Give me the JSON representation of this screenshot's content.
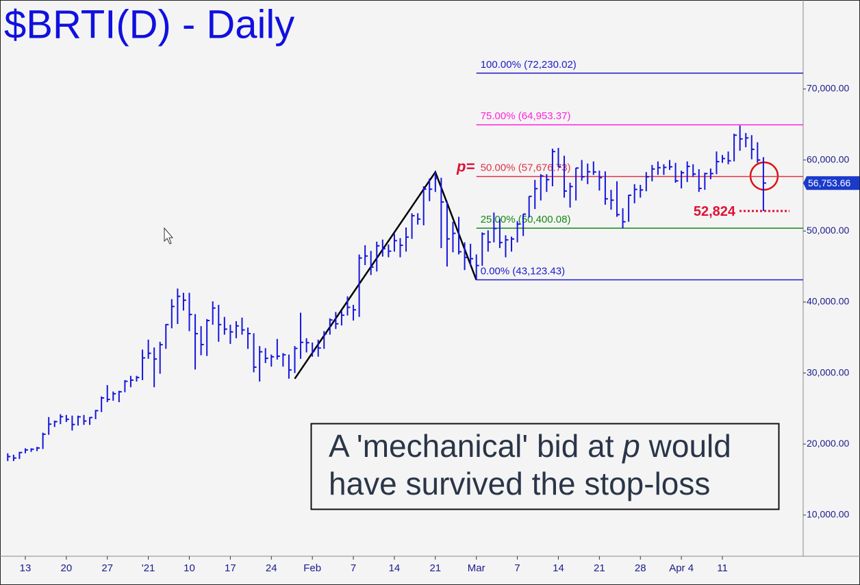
{
  "chart_data": {
    "type": "ohlc",
    "title": "$BRTI(D) - Daily",
    "color": "#1515dd",
    "categories": [
      null,
      null,
      null,
      "13",
      null,
      null,
      null,
      null,
      null,
      null,
      "20",
      null,
      null,
      null,
      null,
      null,
      null,
      "27",
      null,
      null,
      null,
      null,
      null,
      null,
      "'21",
      null,
      null,
      null,
      null,
      null,
      null,
      "10",
      null,
      null,
      null,
      null,
      null,
      null,
      "17",
      null,
      null,
      null,
      null,
      null,
      null,
      "24",
      null,
      null,
      null,
      null,
      null,
      null,
      "Feb",
      null,
      null,
      null,
      null,
      null,
      null,
      "7",
      null,
      null,
      null,
      null,
      null,
      null,
      "14",
      null,
      null,
      null,
      null,
      null,
      null,
      "21",
      null,
      null,
      null,
      null,
      null,
      null,
      "Mar",
      null,
      null,
      null,
      null,
      null,
      null,
      "7",
      null,
      null,
      null,
      null,
      null,
      null,
      "14",
      null,
      null,
      null,
      null,
      null,
      null,
      "21",
      null,
      null,
      null,
      null,
      null,
      null,
      "28",
      null,
      null,
      null,
      null,
      null,
      null,
      "Apr 4",
      null,
      null,
      null,
      null,
      null,
      null,
      "11",
      null,
      null,
      null,
      null,
      null,
      null,
      null
    ],
    "high": [
      18700,
      18500,
      18900,
      19400,
      19400,
      19600,
      21600,
      23800,
      23300,
      24200,
      24100,
      24000,
      24000,
      24100,
      23800,
      24800,
      26700,
      28300,
      27400,
      27500,
      29000,
      29600,
      29600,
      33300,
      34700,
      33600,
      34400,
      36900,
      40400,
      41900,
      41300,
      41300,
      38300,
      36600,
      37600,
      40100,
      39600,
      37900,
      36800,
      37300,
      37800,
      36400,
      35600,
      33800,
      33500,
      32600,
      34800,
      32800,
      32600,
      33800,
      38500,
      34900,
      34300,
      34700,
      35900,
      37700,
      38600,
      38700,
      40800,
      39600,
      46700,
      48000,
      47200,
      48500,
      48800,
      48100,
      49600,
      49000,
      50500,
      52500,
      52500,
      56300,
      57400,
      58300,
      57500,
      54200,
      51300,
      52000,
      48400,
      48200,
      46700,
      49800,
      50100,
      52600,
      51700,
      49400,
      49200,
      51400,
      52400,
      54900,
      57200,
      58000,
      58000,
      61600,
      61700,
      60600,
      56800,
      58900,
      60000,
      59500,
      59800,
      58500,
      58400,
      55800,
      57000,
      53200,
      55100,
      56600,
      56500,
      58300,
      59300,
      59800,
      59400,
      60000,
      59600,
      58500,
      59800,
      59400,
      58700,
      58200,
      58800,
      61200,
      60700,
      61200,
      63700,
      64850,
      63800,
      63500,
      62500,
      60400
    ],
    "low": [
      17600,
      17600,
      17900,
      18700,
      18900,
      19000,
      19300,
      21300,
      22400,
      22800,
      23100,
      21900,
      22600,
      22700,
      22700,
      23500,
      24500,
      25900,
      26100,
      25900,
      27300,
      28000,
      28800,
      29000,
      32000,
      28000,
      29900,
      33400,
      36300,
      36900,
      38800,
      35900,
      30500,
      32500,
      32400,
      36800,
      34400,
      35400,
      34100,
      34900,
      35400,
      33400,
      30100,
      28800,
      31400,
      30900,
      31900,
      30900,
      29200,
      30000,
      32000,
      32900,
      32300,
      32300,
      33400,
      35400,
      36200,
      36700,
      38100,
      37400,
      37900,
      45200,
      43800,
      44300,
      46400,
      46300,
      47100,
      46300,
      47100,
      48900,
      50900,
      50800,
      54200,
      55500,
      47600,
      45000,
      47000,
      46700,
      44500,
      45100,
      43100,
      45100,
      47100,
      48400,
      47600,
      46300,
      47100,
      48400,
      49300,
      51900,
      53100,
      54300,
      55500,
      56300,
      59000,
      54700,
      53300,
      54300,
      57100,
      56600,
      57900,
      55700,
      53700,
      53000,
      52000,
      50400,
      51300,
      53900,
      54700,
      55600,
      57000,
      57900,
      57900,
      58600,
      56800,
      56000,
      56900,
      57600,
      55500,
      55800,
      57300,
      58000,
      59600,
      59400,
      59800,
      61300,
      61800,
      60100,
      59600,
      52824
    ],
    "close": [
      18240,
      18030,
      18800,
      19170,
      19270,
      19440,
      21380,
      22800,
      23150,
      23850,
      23480,
      22750,
      23830,
      23240,
      23730,
      24700,
      26490,
      26280,
      27080,
      27360,
      28840,
      29000,
      29370,
      32130,
      32780,
      31970,
      33990,
      36820,
      39370,
      40800,
      40250,
      38240,
      35540,
      34010,
      37390,
      39150,
      36820,
      36180,
      35790,
      36630,
      36070,
      35550,
      30830,
      32990,
      32070,
      32290,
      32370,
      32570,
      30430,
      33470,
      34320,
      34270,
      33110,
      33520,
      35510,
      37470,
      36930,
      38140,
      39260,
      38900,
      46200,
      46480,
      44920,
      47910,
      47500,
      47160,
      48640,
      47990,
      49140,
      52150,
      51680,
      55890,
      55890,
      57410,
      54090,
      48890,
      49670,
      47070,
      46280,
      46100,
      45140,
      49590,
      48440,
      50350,
      48370,
      48750,
      48880,
      50970,
      52380,
      54880,
      55960,
      57750,
      57230,
      61190,
      59020,
      55630,
      56260,
      58870,
      57630,
      58340,
      58310,
      57520,
      54530,
      54340,
      52300,
      51300,
      55040,
      55860,
      55780,
      57630,
      58730,
      58920,
      58960,
      59040,
      57060,
      58200,
      59100,
      58020,
      56000,
      58090,
      58090,
      59770,
      60200,
      59890,
      63500,
      62970,
      63110,
      61500,
      60000,
      56753.66
    ],
    "ylim": [
      4200,
      82050
    ],
    "yticks": [
      {
        "value": 10000,
        "label": "10,000.00"
      },
      {
        "value": 20000,
        "label": "20,000.00"
      },
      {
        "value": 30000,
        "label": "30,000.00"
      },
      {
        "value": 40000,
        "label": "40,000.00"
      },
      {
        "value": 50000,
        "label": "50,000.00"
      },
      {
        "value": 60000,
        "label": "60,000.00"
      },
      {
        "value": 70000,
        "label": "70,000.00"
      }
    ],
    "fib_levels": [
      {
        "label": "100.00% (72,230.02)",
        "value": 72230.02,
        "color": "#1a1acc"
      },
      {
        "label": "75.00% (64,953.37)",
        "value": 64953.37,
        "color": "#ff22dd"
      },
      {
        "label": "50.00% (57,676.73)",
        "value": 57676.73,
        "color": "#dd3344"
      },
      {
        "label": "25.00% (50,400.08)",
        "value": 50400.08,
        "color": "#118811"
      },
      {
        "label": "0.00% (43,123.43)",
        "value": 43123.43,
        "color": "#1a1acc"
      }
    ],
    "fib_start": 80,
    "p_label": "p=",
    "stop": {
      "value": 52824,
      "label": "52,824"
    },
    "last_price": {
      "value": 56753.66,
      "label": "56,753.66"
    },
    "pattern_line": {
      "x": [
        49,
        73,
        80
      ],
      "values": [
        29200,
        58300,
        43100
      ]
    },
    "note": {
      "parts": [
        "A 'mechanical' bid at ",
        "p",
        " would",
        "have survived the stop-loss"
      ]
    }
  }
}
